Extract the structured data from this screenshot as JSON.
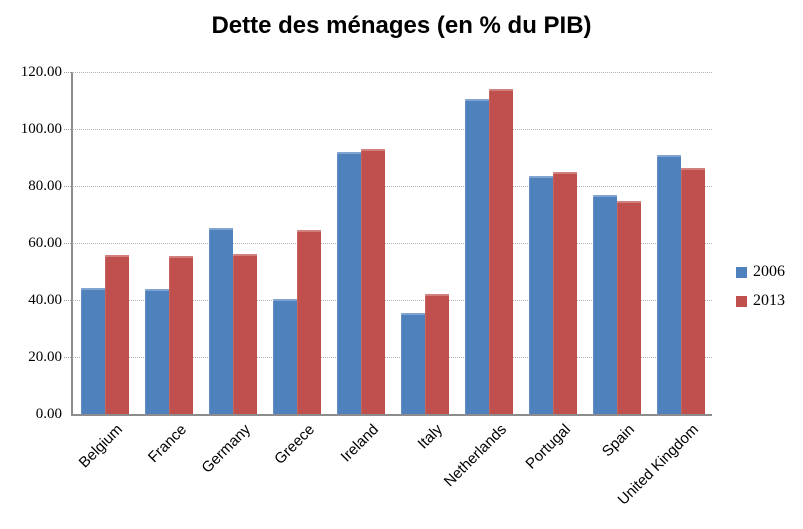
{
  "chart_data": {
    "type": "bar",
    "title": "Dette des ménages (en % du PIB)",
    "categories": [
      "Belgium",
      "France",
      "Germany",
      "Greece",
      "Ireland",
      "Italy",
      "Netherlands",
      "Portugal",
      "Spain",
      "United Kingdom"
    ],
    "series": [
      {
        "name": "2006",
        "color": "#4F81BD",
        "values": [
          44.3,
          43.9,
          65.2,
          40.2,
          92.1,
          35.5,
          110.6,
          83.4,
          76.8,
          90.8
        ]
      },
      {
        "name": "2013",
        "color": "#C0504D",
        "values": [
          55.8,
          55.4,
          56.2,
          64.7,
          92.9,
          42.1,
          114.0,
          84.8,
          74.7,
          86.2
        ]
      }
    ],
    "xlabel": "",
    "ylabel": "",
    "ylim": [
      0,
      120
    ],
    "ytick_step": 20,
    "ytick_labels": [
      "0.00",
      "20.00",
      "40.00",
      "60.00",
      "80.00",
      "100.00",
      "120.00"
    ],
    "grid": "horizontal-dotted",
    "legend_position": "right",
    "x_label_rotation_deg": -45,
    "colors": {
      "background": "#FFFFFF",
      "axis_line": "#8C8C8C",
      "gridline": "#B3B3B3",
      "text": "#000000"
    }
  }
}
